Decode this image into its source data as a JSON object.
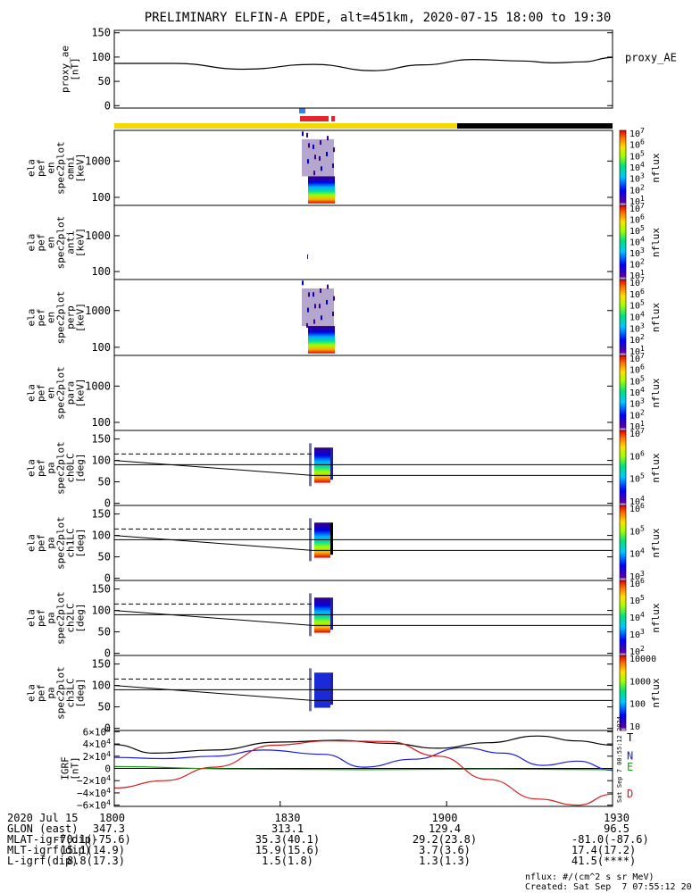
{
  "title": "PRELIMINARY ELFIN-A EPDE, alt=451km, 2020-07-15 18:00 to 19:30",
  "colors": {
    "sci_zone": "#e8242b",
    "ground_zone": "#2f86e8",
    "day": "#f5d800",
    "night": "#000000",
    "bx": "#1a1adb",
    "by": "#18a018",
    "bz": "#d81b1b",
    "bt": "#000000"
  },
  "chart_data": [
    {
      "type": "line",
      "id": "proxy_ae",
      "ylabel_lines": [
        "proxy_ae",
        "[nT]"
      ],
      "series_label": "proxy_AE",
      "ylim": [
        -5,
        155
      ],
      "yticks": [
        "150",
        "100",
        "50",
        "0"
      ],
      "ytick_values": [
        150,
        100,
        50,
        0
      ],
      "x": [
        0,
        0.12,
        0.26,
        0.4,
        0.52,
        0.62,
        0.72,
        0.82,
        0.88,
        0.94,
        1.0
      ],
      "y": [
        87,
        87,
        75,
        85,
        72,
        84,
        95,
        92,
        88,
        90,
        99
      ]
    },
    {
      "type": "heatmap",
      "id": "omni",
      "ylabel_lines": [
        "ela",
        "pef",
        "en",
        "spec2plot",
        "omni",
        "[keV]"
      ],
      "scale": "log",
      "ylim": [
        60,
        7000
      ],
      "yticks": [
        "1000",
        "100"
      ],
      "ytick_values": [
        1000,
        100
      ],
      "zlabel": "nflux",
      "zticks": [
        "10^7",
        "10^6",
        "10^5",
        "10^4",
        "10^3",
        "10^2",
        "10^1"
      ]
    },
    {
      "type": "heatmap",
      "id": "anti",
      "ylabel_lines": [
        "ela",
        "pef",
        "en",
        "spec2plot",
        "anti",
        "[keV]"
      ],
      "scale": "log",
      "ylim": [
        60,
        7000
      ],
      "yticks": [
        "1000",
        "100"
      ],
      "ytick_values": [
        1000,
        100
      ],
      "zlabel": "nflux",
      "zticks": [
        "10^7",
        "10^6",
        "10^5",
        "10^4",
        "10^3",
        "10^2",
        "10^1"
      ]
    },
    {
      "type": "heatmap",
      "id": "perp",
      "ylabel_lines": [
        "ela",
        "pef",
        "en",
        "spec2plot",
        "perp",
        "[keV]"
      ],
      "scale": "log",
      "ylim": [
        60,
        7000
      ],
      "yticks": [
        "1000",
        "100"
      ],
      "ytick_values": [
        1000,
        100
      ],
      "zlabel": "nflux",
      "zticks": [
        "10^7",
        "10^6",
        "10^5",
        "10^4",
        "10^3",
        "10^2",
        "10^1"
      ]
    },
    {
      "type": "heatmap",
      "id": "para",
      "ylabel_lines": [
        "ela",
        "pef",
        "en",
        "spec2plot",
        "para",
        "[keV]"
      ],
      "scale": "log",
      "ylim": [
        60,
        7000
      ],
      "yticks": [
        "1000",
        "100"
      ],
      "ytick_values": [
        1000,
        100
      ],
      "zlabel": "nflux",
      "zticks": [
        "10^7",
        "10^6",
        "10^5",
        "10^4",
        "10^3",
        "10^2",
        "10^1"
      ]
    },
    {
      "type": "heatmap",
      "id": "ch0LC",
      "ylabel_lines": [
        "ela",
        "pef",
        "pa",
        "spec2plot",
        "ch0LC",
        "[deg]"
      ],
      "scale": "linear",
      "ylim": [
        -5,
        170
      ],
      "yticks": [
        "150",
        "100",
        "50",
        "0"
      ],
      "ytick_values": [
        150,
        100,
        50,
        0
      ],
      "zlabel": "nflux",
      "zticks": [
        "10^7",
        "10^6",
        "10^5",
        "10^4"
      ]
    },
    {
      "type": "heatmap",
      "id": "ch1LC",
      "ylabel_lines": [
        "ela",
        "pef",
        "pa",
        "spec2plot",
        "ch1LC",
        "[deg]"
      ],
      "scale": "linear",
      "ylim": [
        -5,
        170
      ],
      "yticks": [
        "150",
        "100",
        "50",
        "0"
      ],
      "ytick_values": [
        150,
        100,
        50,
        0
      ],
      "zlabel": "nflux",
      "zticks": [
        "10^6",
        "10^5",
        "10^4",
        "10^3"
      ]
    },
    {
      "type": "heatmap",
      "id": "ch2LC",
      "ylabel_lines": [
        "ela",
        "pef",
        "pa",
        "spec2plot",
        "ch2LC",
        "[deg]"
      ],
      "scale": "linear",
      "ylim": [
        -5,
        170
      ],
      "yticks": [
        "150",
        "100",
        "50",
        "0"
      ],
      "ytick_values": [
        150,
        100,
        50,
        0
      ],
      "zlabel": "nflux",
      "zticks": [
        "10^6",
        "10^5",
        "10^4",
        "10^3",
        "10^2"
      ]
    },
    {
      "type": "heatmap",
      "id": "ch3LC",
      "ylabel_lines": [
        "ela",
        "pef",
        "pa",
        "spec2plot",
        "ch3LC",
        "[deg]"
      ],
      "scale": "linear",
      "ylim": [
        -5,
        170
      ],
      "yticks": [
        "150",
        "100",
        "50",
        "0"
      ],
      "ytick_values": [
        150,
        100,
        50,
        0
      ],
      "zlabel": "nflux",
      "zticks": [
        "10000",
        "1000",
        "100",
        "10"
      ]
    },
    {
      "type": "line",
      "id": "igrf",
      "ylabel_lines": [
        "IGRF",
        "[nT]"
      ],
      "ylim": [
        -62000,
        62000
      ],
      "yticks": [
        "6×10^4",
        "4×10^4",
        "2×10^4",
        "0",
        "−2×10^4",
        "−4×10^4",
        "−6×10^4"
      ],
      "ytick_values": [
        60000,
        40000,
        20000,
        0,
        -20000,
        -40000,
        -60000
      ],
      "legend": [
        "T",
        "N",
        "E",
        "D"
      ],
      "stamp": "Sat Sep  7 00:55:12 2024",
      "series": [
        {
          "name": "T",
          "x": [
            0,
            0.08,
            0.2,
            0.33,
            0.45,
            0.55,
            0.65,
            0.75,
            0.85,
            0.93,
            1.0
          ],
          "y": [
            39000,
            25000,
            30000,
            43000,
            46000,
            41000,
            33000,
            42000,
            53000,
            45000,
            38000
          ]
        },
        {
          "name": "N",
          "x": [
            0,
            0.1,
            0.2,
            0.3,
            0.42,
            0.5,
            0.6,
            0.7,
            0.78,
            0.86,
            0.93,
            1.0
          ],
          "y": [
            18000,
            16000,
            20000,
            30000,
            23000,
            2000,
            15000,
            34000,
            25000,
            5000,
            12000,
            -3000
          ]
        },
        {
          "name": "E",
          "x": [
            0,
            0.25,
            0.5,
            0.75,
            1.0
          ],
          "y": [
            3000,
            -1000,
            -2000,
            -1000,
            -2000
          ]
        },
        {
          "name": "D",
          "x": [
            0,
            0.1,
            0.2,
            0.32,
            0.43,
            0.55,
            0.65,
            0.75,
            0.85,
            0.93,
            1.0
          ],
          "y": [
            -32000,
            -20000,
            2000,
            38000,
            45000,
            44000,
            20000,
            -18000,
            -50000,
            -60000,
            -42000
          ]
        }
      ]
    }
  ],
  "xaxis": {
    "tick_labels": [
      "1800",
      "1830",
      "1900",
      "1930"
    ],
    "tick_values": [
      0,
      0.333,
      0.667,
      1.0
    ]
  },
  "footer": {
    "rows": [
      {
        "label": "2020 Jul 15",
        "values": [
          "1800",
          "1830",
          "1900",
          "1930"
        ]
      },
      {
        "label": "GLON (east)",
        "values": [
          "347.3",
          "313.1",
          "129.4",
          "96.5"
        ]
      },
      {
        "label": "MLAT-igrf(dip)",
        "values": [
          "-70.1(-75.6)",
          "35.3(40.1)",
          "29.2(23.8)",
          "-81.0(-87.6)"
        ]
      },
      {
        "label": "MLT-igrf(dip)",
        "values": [
          "15.1(14.9)",
          "15.9(15.6)",
          "3.7(3.6)",
          "17.4(17.2)"
        ]
      },
      {
        "label": "L-igrf(dip)",
        "values": [
          "8.8(17.3)",
          "1.5(1.8)",
          "1.3(1.3)",
          "41.5(****)"
        ]
      }
    ],
    "units": "nflux: #/(cm^2 s sr MeV)",
    "created": "Created: Sat Sep  7 07:55:12 2024"
  }
}
